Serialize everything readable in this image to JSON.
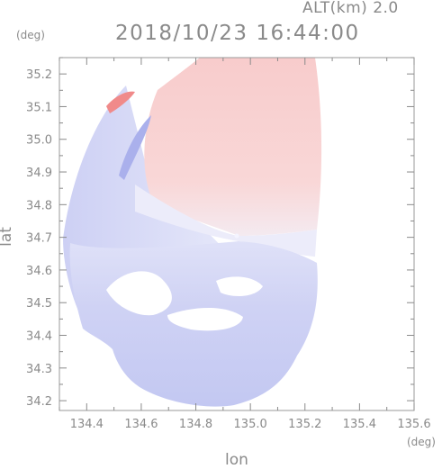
{
  "header": {
    "altitude_label": "ALT(km) 2.0",
    "timestamp": "2018/10/23 16:44:00"
  },
  "axes": {
    "lat_unit": "(deg)",
    "lon_unit": "(deg)",
    "lat_title": "lat",
    "lon_title": "lon"
  },
  "chart_data": {
    "type": "heatmap",
    "title": "2018/10/23 16:44:00",
    "subtitle": "ALT(km) 2.0",
    "xlabel": "lon",
    "ylabel": "lat",
    "xlim": [
      134.3,
      135.6
    ],
    "ylim": [
      34.17,
      35.25
    ],
    "x_ticks": [
      "134.4",
      "134.6",
      "134.8",
      "135.0",
      "135.2",
      "135.4",
      "135.6"
    ],
    "y_ticks": [
      "34.2",
      "34.3",
      "34.4",
      "34.5",
      "34.6",
      "34.7",
      "34.8",
      "34.9",
      "35.0",
      "35.1",
      "35.2"
    ],
    "colors": {
      "positive": "#f6c9c9",
      "negative": "#c9cdf3",
      "neutral": "#eeeefa",
      "axis": "#8a8a8a"
    }
  }
}
